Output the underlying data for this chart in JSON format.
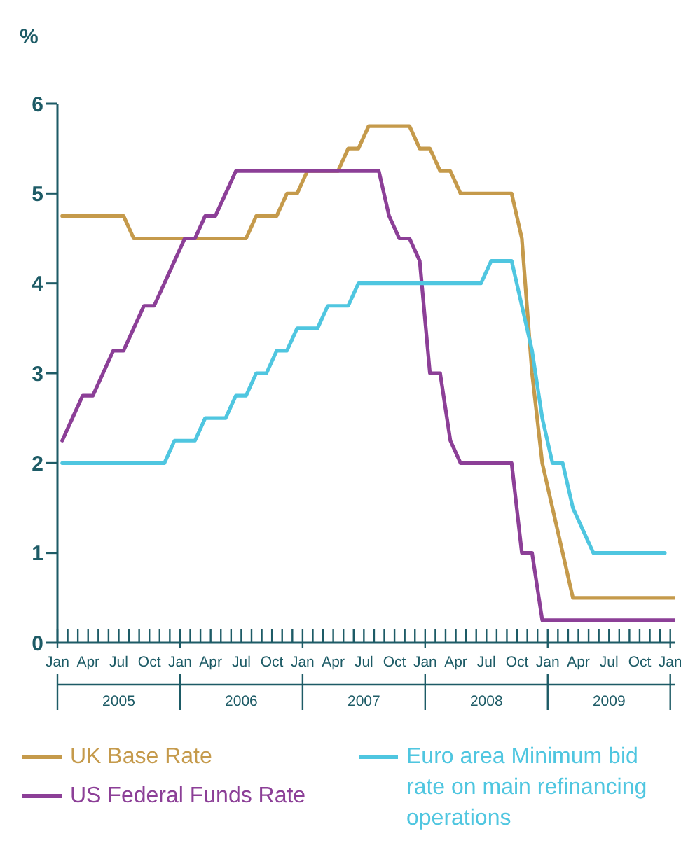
{
  "chart_data": {
    "type": "line",
    "ylabel": "%",
    "legend": "bottom",
    "x": [
      "2005-01-15",
      "2005-02-15",
      "2005-03-15",
      "2005-04-15",
      "2005-05-15",
      "2005-06-15",
      "2005-07-15",
      "2005-08-15",
      "2005-09-15",
      "2005-10-15",
      "2005-11-15",
      "2005-12-15",
      "2006-01-15",
      "2006-02-15",
      "2006-03-15",
      "2006-04-15",
      "2006-05-15",
      "2006-06-15",
      "2006-07-15",
      "2006-08-15",
      "2006-09-15",
      "2006-10-15",
      "2006-11-15",
      "2006-12-15",
      "2007-01-15",
      "2007-02-15",
      "2007-03-15",
      "2007-04-15",
      "2007-05-15",
      "2007-06-15",
      "2007-07-15",
      "2007-08-15",
      "2007-09-15",
      "2007-10-15",
      "2007-11-15",
      "2007-12-15",
      "2008-01-15",
      "2008-02-15",
      "2008-03-15",
      "2008-04-15",
      "2008-05-15",
      "2008-06-15",
      "2008-07-15",
      "2008-08-15",
      "2008-09-15",
      "2008-10-15",
      "2008-11-15",
      "2008-12-15",
      "2009-01-15",
      "2009-02-15",
      "2009-03-15",
      "2009-04-15",
      "2009-05-15",
      "2009-06-15",
      "2009-07-15",
      "2009-08-15",
      "2009-09-15",
      "2009-10-15",
      "2009-11-15",
      "2009-12-15",
      "2010-01-15"
    ],
    "series": [
      {
        "name": "UK Base Rate",
        "color": "#c59a4b",
        "values": [
          4.75,
          4.75,
          4.75,
          4.75,
          4.75,
          4.75,
          4.75,
          4.5,
          4.5,
          4.5,
          4.5,
          4.5,
          4.5,
          4.5,
          4.5,
          4.5,
          4.5,
          4.5,
          4.5,
          4.75,
          4.75,
          4.75,
          5.0,
          5.0,
          5.25,
          5.25,
          5.25,
          5.25,
          5.5,
          5.5,
          5.75,
          5.75,
          5.75,
          5.75,
          5.75,
          5.5,
          5.5,
          5.25,
          5.25,
          5.0,
          5.0,
          5.0,
          5.0,
          5.0,
          5.0,
          4.5,
          3.0,
          2.0,
          1.5,
          1.0,
          0.5,
          0.5,
          0.5,
          0.5,
          0.5,
          0.5,
          0.5,
          0.5,
          0.5,
          0.5,
          0.5
        ]
      },
      {
        "name": "US Federal Funds Rate",
        "color": "#8c3f97",
        "values": [
          2.25,
          2.5,
          2.75,
          2.75,
          3.0,
          3.25,
          3.25,
          3.5,
          3.75,
          3.75,
          4.0,
          4.25,
          4.5,
          4.5,
          4.75,
          4.75,
          5.0,
          5.25,
          5.25,
          5.25,
          5.25,
          5.25,
          5.25,
          5.25,
          5.25,
          5.25,
          5.25,
          5.25,
          5.25,
          5.25,
          5.25,
          5.25,
          4.75,
          4.5,
          4.5,
          4.25,
          3.0,
          3.0,
          2.25,
          2.0,
          2.0,
          2.0,
          2.0,
          2.0,
          2.0,
          1.0,
          1.0,
          0.25,
          0.25,
          0.25,
          0.25,
          0.25,
          0.25,
          0.25,
          0.25,
          0.25,
          0.25,
          0.25,
          0.25,
          0.25,
          0.25
        ]
      },
      {
        "name": "Euro area Minimum bid rate on main refinancing operations",
        "color": "#4fc6e0",
        "values": [
          2.0,
          2.0,
          2.0,
          2.0,
          2.0,
          2.0,
          2.0,
          2.0,
          2.0,
          2.0,
          2.0,
          2.25,
          2.25,
          2.25,
          2.5,
          2.5,
          2.5,
          2.75,
          2.75,
          3.0,
          3.0,
          3.25,
          3.25,
          3.5,
          3.5,
          3.5,
          3.75,
          3.75,
          3.75,
          4.0,
          4.0,
          4.0,
          4.0,
          4.0,
          4.0,
          4.0,
          4.0,
          4.0,
          4.0,
          4.0,
          4.0,
          4.0,
          4.25,
          4.25,
          4.25,
          3.75,
          3.25,
          2.5,
          2.0,
          2.0,
          1.5,
          1.25,
          1.0,
          1.0,
          1.0,
          1.0,
          1.0,
          1.0,
          1.0,
          1.0,
          null
        ]
      }
    ],
    "xlim": [
      "2005-01-01",
      "2010-01-16"
    ],
    "xticks": [
      {
        "value": "2005-01-01",
        "label": "Jan"
      },
      {
        "value": "2005-02-01",
        "label": null
      },
      {
        "value": "2005-03-01",
        "label": null
      },
      {
        "value": "2005-04-01",
        "label": "Apr"
      },
      {
        "value": "2005-05-01",
        "label": null
      },
      {
        "value": "2005-06-01",
        "label": null
      },
      {
        "value": "2005-07-01",
        "label": "Jul"
      },
      {
        "value": "2005-08-01",
        "label": null
      },
      {
        "value": "2005-09-01",
        "label": null
      },
      {
        "value": "2005-10-01",
        "label": "Oct"
      },
      {
        "value": "2005-11-01",
        "label": null
      },
      {
        "value": "2005-12-01",
        "label": null
      },
      {
        "value": "2006-01-01",
        "label": "Jan"
      },
      {
        "value": "2006-02-01",
        "label": null
      },
      {
        "value": "2006-03-01",
        "label": null
      },
      {
        "value": "2006-04-01",
        "label": "Apr"
      },
      {
        "value": "2006-05-01",
        "label": null
      },
      {
        "value": "2006-06-01",
        "label": null
      },
      {
        "value": "2006-07-01",
        "label": "Jul"
      },
      {
        "value": "2006-08-01",
        "label": null
      },
      {
        "value": "2006-09-01",
        "label": null
      },
      {
        "value": "2006-10-01",
        "label": "Oct"
      },
      {
        "value": "2006-11-01",
        "label": null
      },
      {
        "value": "2006-12-01",
        "label": null
      },
      {
        "value": "2007-01-01",
        "label": "Jan"
      },
      {
        "value": "2007-02-01",
        "label": null
      },
      {
        "value": "2007-03-01",
        "label": null
      },
      {
        "value": "2007-04-01",
        "label": "Apr"
      },
      {
        "value": "2007-05-01",
        "label": null
      },
      {
        "value": "2007-06-01",
        "label": null
      },
      {
        "value": "2007-07-01",
        "label": "Jul"
      },
      {
        "value": "2007-08-01",
        "label": null
      },
      {
        "value": "2007-09-01",
        "label": null
      },
      {
        "value": "2007-10-01",
        "label": "Oct"
      },
      {
        "value": "2007-11-01",
        "label": null
      },
      {
        "value": "2007-12-01",
        "label": null
      },
      {
        "value": "2008-01-01",
        "label": "Jan"
      },
      {
        "value": "2008-02-01",
        "label": null
      },
      {
        "value": "2008-03-01",
        "label": null
      },
      {
        "value": "2008-04-01",
        "label": "Apr"
      },
      {
        "value": "2008-05-01",
        "label": null
      },
      {
        "value": "2008-06-01",
        "label": null
      },
      {
        "value": "2008-07-01",
        "label": "Jul"
      },
      {
        "value": "2008-08-01",
        "label": null
      },
      {
        "value": "2008-09-01",
        "label": null
      },
      {
        "value": "2008-10-01",
        "label": "Oct"
      },
      {
        "value": "2008-11-01",
        "label": null
      },
      {
        "value": "2008-12-01",
        "label": null
      },
      {
        "value": "2009-01-01",
        "label": "Jan"
      },
      {
        "value": "2009-02-01",
        "label": null
      },
      {
        "value": "2009-03-01",
        "label": null
      },
      {
        "value": "2009-04-01",
        "label": "Apr"
      },
      {
        "value": "2009-05-01",
        "label": null
      },
      {
        "value": "2009-06-01",
        "label": null
      },
      {
        "value": "2009-07-01",
        "label": "Jul"
      },
      {
        "value": "2009-08-01",
        "label": null
      },
      {
        "value": "2009-09-01",
        "label": null
      },
      {
        "value": "2009-10-01",
        "label": "Oct"
      },
      {
        "value": "2009-11-01",
        "label": null
      },
      {
        "value": "2009-12-01",
        "label": null
      },
      {
        "value": "2010-01-01",
        "label": "Jan"
      }
    ],
    "ylim": [
      0,
      6
    ],
    "yticks": [
      0,
      1,
      2,
      3,
      4,
      5,
      6
    ],
    "annotations": [
      "2005",
      "2006",
      "2007",
      "2008",
      "2009"
    ]
  }
}
